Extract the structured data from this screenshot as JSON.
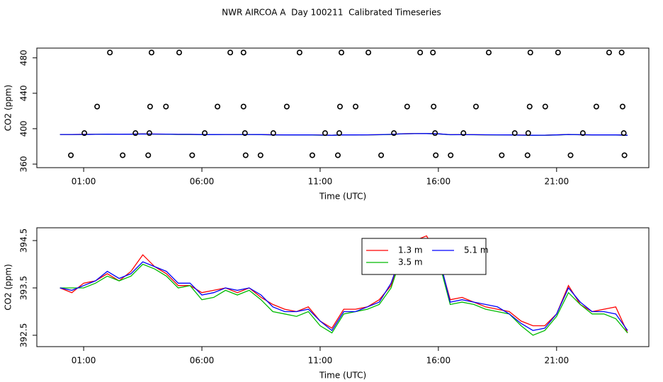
{
  "chart_data": [
    {
      "type": "scatter",
      "title": "NWR AIRCOA A  Day 100211  Calibrated Timeseries",
      "xlabel": "Time (UTC)",
      "ylabel": "CO2 (ppm)",
      "color": "#000000",
      "xlim": [
        -0.98,
        24.9
      ],
      "ylim": [
        356,
        491
      ],
      "xticks": [
        {
          "value": 1,
          "label": "01:00"
        },
        {
          "value": 6,
          "label": "06:00"
        },
        {
          "value": 11,
          "label": "11:00"
        },
        {
          "value": 16,
          "label": "16:00"
        },
        {
          "value": 21,
          "label": "21:00"
        }
      ],
      "yticks": [
        360,
        400,
        440,
        480
      ],
      "x": [
        2.11,
        3.87,
        5.04,
        7.2,
        7.76,
        10.13,
        11.9,
        13.04,
        15.23,
        15.77,
        18.13,
        19.89,
        21.06,
        23.22,
        23.75,
        1.57,
        3.81,
        4.48,
        6.66,
        7.76,
        9.59,
        11.84,
        12.5,
        14.68,
        15.8,
        17.59,
        19.86,
        20.52,
        22.68,
        23.79,
        1.03,
        3.19,
        3.78,
        6.12,
        7.82,
        9.02,
        11.21,
        11.81,
        14.12,
        15.86,
        17.06,
        19.23,
        19.8,
        22.11,
        23.84,
        0.46,
        2.65,
        3.73,
        5.59,
        7.85,
        8.48,
        10.67,
        11.75,
        13.58,
        15.89,
        16.52,
        18.68,
        19.77,
        21.59,
        23.87
      ],
      "y": [
        486,
        486,
        486,
        486,
        486,
        486,
        486,
        486,
        486,
        486,
        486,
        486,
        486,
        486,
        486,
        425,
        425,
        425,
        425,
        425,
        425,
        425,
        425,
        425,
        425,
        425,
        425,
        425,
        425,
        425,
        395,
        395,
        395,
        395,
        395,
        395,
        395,
        395,
        395,
        395,
        395,
        395,
        395,
        395,
        395,
        370,
        370,
        370,
        370,
        370,
        370,
        370,
        370,
        370,
        370,
        370,
        370,
        370,
        370,
        370
      ]
    },
    {
      "type": "line",
      "xlabel": "Time (UTC)",
      "ylabel": "CO2 (ppm)",
      "xlim": [
        -0.98,
        24.9
      ],
      "ylim": [
        392.26,
        394.77
      ],
      "xticks": [
        {
          "value": 1,
          "label": "01:00"
        },
        {
          "value": 6,
          "label": "06:00"
        },
        {
          "value": 11,
          "label": "11:00"
        },
        {
          "value": 16,
          "label": "16:00"
        },
        {
          "value": 21,
          "label": "21:00"
        }
      ],
      "yticks": [
        392.5,
        393.5,
        394.5
      ],
      "legend": "top",
      "x": [
        0,
        0.5,
        1,
        1.5,
        2,
        2.5,
        3,
        3.5,
        4,
        4.5,
        5,
        5.5,
        6,
        6.5,
        7,
        7.5,
        8,
        8.5,
        9,
        9.5,
        10,
        10.5,
        11,
        11.5,
        12,
        12.5,
        13,
        13.5,
        14,
        14.5,
        15,
        15.5,
        16,
        16.5,
        17,
        17.5,
        18,
        18.5,
        19,
        19.5,
        20,
        20.5,
        21,
        21.5,
        22,
        22.5,
        23,
        23.5,
        24
      ],
      "series": [
        {
          "name": "1.3 m",
          "color": "#ff0000",
          "values": [
            393.5,
            393.4,
            393.6,
            393.65,
            393.8,
            393.65,
            393.85,
            394.2,
            393.95,
            393.8,
            393.55,
            393.55,
            393.4,
            393.45,
            393.5,
            393.4,
            393.5,
            393.3,
            393.15,
            393.05,
            393.0,
            393.1,
            392.8,
            392.65,
            393.05,
            393.05,
            393.1,
            393.25,
            393.55,
            394.35,
            394.5,
            394.6,
            394.15,
            393.25,
            393.3,
            393.2,
            393.1,
            393.05,
            393.0,
            392.8,
            392.7,
            392.7,
            392.95,
            393.55,
            393.15,
            393.0,
            393.05,
            393.1,
            392.55
          ]
        },
        {
          "name": "3.5 m",
          "color": "#00bb00",
          "values": [
            393.5,
            393.5,
            393.5,
            393.6,
            393.75,
            393.65,
            393.75,
            394.0,
            393.9,
            393.75,
            393.5,
            393.55,
            393.25,
            393.3,
            393.45,
            393.35,
            393.45,
            393.25,
            393.0,
            392.95,
            392.9,
            393.0,
            392.7,
            392.55,
            392.95,
            393.0,
            393.05,
            393.15,
            393.5,
            394.25,
            394.4,
            394.5,
            394.1,
            393.15,
            393.2,
            393.15,
            393.05,
            393.0,
            392.95,
            392.7,
            392.5,
            392.6,
            392.9,
            393.4,
            393.15,
            392.95,
            392.95,
            392.85,
            392.55
          ]
        },
        {
          "name": "5.1 m",
          "color": "#0000ff",
          "values": [
            393.5,
            393.45,
            393.55,
            393.65,
            393.85,
            393.7,
            393.8,
            394.05,
            393.95,
            393.85,
            393.6,
            393.6,
            393.35,
            393.4,
            393.5,
            393.45,
            393.5,
            393.35,
            393.1,
            393.0,
            393.0,
            393.05,
            392.8,
            392.6,
            393.0,
            393.0,
            393.1,
            393.2,
            393.6,
            394.3,
            394.45,
            394.5,
            394.2,
            393.2,
            393.25,
            393.2,
            393.15,
            393.1,
            392.95,
            392.75,
            392.6,
            392.65,
            392.95,
            393.5,
            393.2,
            393.0,
            393.0,
            392.95,
            392.6
          ]
        }
      ]
    }
  ]
}
